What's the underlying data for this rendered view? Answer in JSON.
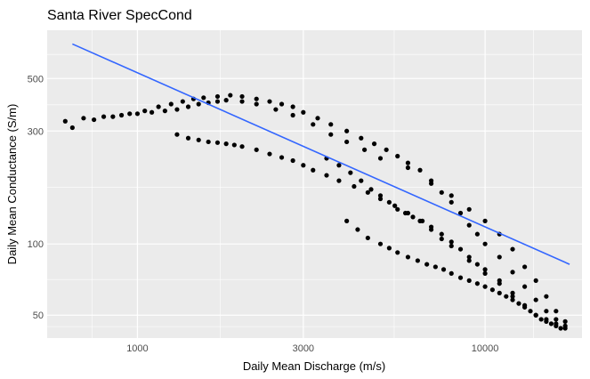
{
  "chart_data": {
    "type": "scatter",
    "title": "Santa River SpecCond",
    "xlabel": "Daily Mean Discharge (m/s)",
    "ylabel": "Daily Mean Conductance (S/m)",
    "x_scale": "log10",
    "y_scale": "log10",
    "xlim": [
      550,
      19000
    ],
    "ylim": [
      40,
      800
    ],
    "x_ticks": [
      1000,
      3000,
      10000
    ],
    "x_tick_labels": [
      "1000",
      "3000",
      "10000"
    ],
    "y_ticks": [
      50,
      100,
      300,
      500
    ],
    "y_tick_labels": [
      "50",
      "100",
      "300",
      "500"
    ],
    "grid": true,
    "legend": "none",
    "colors": {
      "panel": "#ebebeb",
      "grid": "#ffffff",
      "points": "#000000",
      "trend": "#3366ff"
    },
    "series": [
      {
        "kind": "points",
        "x": [
          620,
          700,
          800,
          900,
          1000,
          1100,
          1200,
          1300,
          1400,
          1500,
          1600,
          1700,
          1800,
          2000,
          2200,
          2500,
          2800,
          3200,
          3600,
          4000,
          4500,
          5000,
          6000,
          7000,
          8000,
          9000,
          10000,
          11000,
          12000,
          13000,
          14000,
          15000,
          16000,
          17000,
          650,
          750,
          850,
          950,
          1050,
          1150,
          1250,
          1350,
          1450,
          1550,
          1700,
          1850,
          2000,
          2200,
          2400,
          2600,
          2800,
          3000,
          3300,
          3600,
          4000,
          4400,
          4800,
          5200,
          5600,
          6000,
          6500,
          7000,
          7500,
          8000,
          8500,
          9000,
          9500,
          10000,
          11000,
          12000,
          13000,
          14000,
          15000,
          16000,
          17000,
          1300,
          1400,
          1500,
          1600,
          1700,
          1800,
          1900,
          2000,
          2200,
          2400,
          2600,
          2800,
          3000,
          3200,
          3500,
          3800,
          4200,
          4600,
          5000,
          5500,
          6000,
          6500,
          7000,
          7500,
          8000,
          9000,
          10000,
          11000,
          12000,
          13000,
          14000,
          15000,
          16000,
          3500,
          3800,
          4100,
          4400,
          4700,
          5000,
          5300,
          5600,
          5900,
          6200,
          6600,
          7000,
          7500,
          8000,
          8500,
          9000,
          9500,
          10000,
          11000,
          12000,
          4000,
          4300,
          4600,
          5000,
          5300,
          5600,
          6000,
          6400,
          6800,
          7200,
          7600,
          8000,
          8500,
          9000,
          9500,
          10000,
          10500,
          11000,
          11500,
          12000,
          12500,
          13000,
          13500,
          14000,
          14500,
          15000,
          15500,
          16000,
          16500,
          17000
        ],
        "y": [
          330,
          340,
          345,
          350,
          355,
          360,
          365,
          370,
          380,
          390,
          395,
          400,
          405,
          400,
          390,
          370,
          350,
          320,
          290,
          270,
          250,
          230,
          210,
          180,
          160,
          140,
          125,
          110,
          95,
          80,
          70,
          60,
          52,
          47,
          310,
          335,
          345,
          355,
          365,
          380,
          390,
          400,
          410,
          415,
          420,
          425,
          420,
          410,
          400,
          390,
          380,
          360,
          340,
          320,
          300,
          280,
          265,
          250,
          235,
          220,
          205,
          185,
          165,
          150,
          135,
          120,
          110,
          100,
          88,
          76,
          66,
          58,
          52,
          48,
          45,
          290,
          280,
          275,
          270,
          268,
          265,
          262,
          258,
          250,
          240,
          232,
          225,
          215,
          205,
          195,
          185,
          175,
          165,
          155,
          145,
          135,
          125,
          115,
          105,
          98,
          85,
          75,
          68,
          60,
          55,
          50,
          48,
          46,
          230,
          215,
          200,
          185,
          170,
          160,
          150,
          140,
          135,
          130,
          125,
          118,
          110,
          102,
          95,
          88,
          82,
          78,
          70,
          62,
          125,
          115,
          106,
          100,
          96,
          92,
          88,
          85,
          82,
          80,
          78,
          75,
          72,
          70,
          68,
          66,
          64,
          62,
          60,
          58,
          56,
          54,
          52,
          50,
          48,
          47,
          46,
          45,
          44,
          44
        ]
      },
      {
        "kind": "trend",
        "x": [
          650,
          17500
        ],
        "y": [
          700,
          82
        ]
      }
    ]
  }
}
